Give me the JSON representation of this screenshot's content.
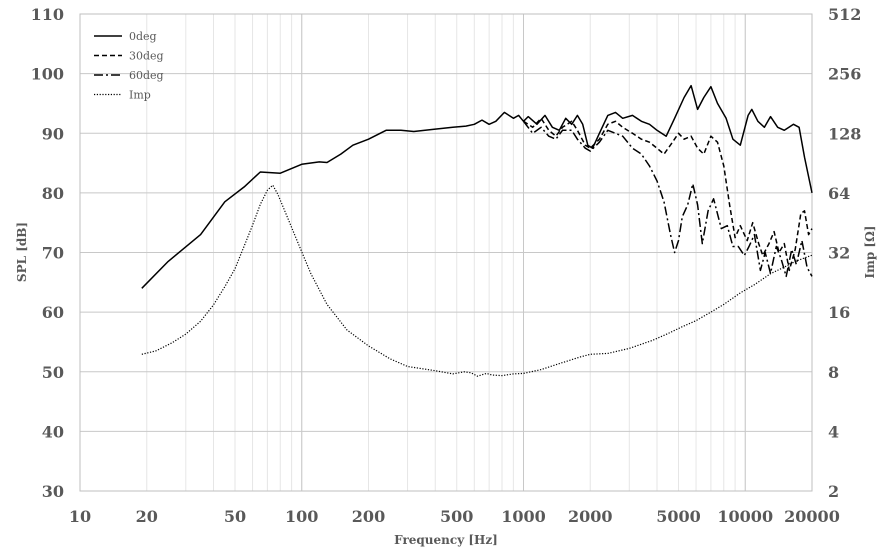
{
  "chart_data": {
    "type": "line",
    "title": "",
    "xlabel": "Frequency [Hz]",
    "ylabel": "SPL [dB]",
    "y2label": "Imp [Ω]",
    "x_scale": "log",
    "xlim": [
      10,
      20000
    ],
    "ylim": [
      30,
      110
    ],
    "y2lim": [
      2,
      512
    ],
    "y2_scale": "log2",
    "grid": true,
    "legend_position": "top-left",
    "xticks": [
      "10",
      "20",
      "50",
      "100",
      "200",
      "500",
      "1000",
      "2000",
      "5000",
      "10000",
      "20000"
    ],
    "yticks": [
      "30",
      "40",
      "50",
      "60",
      "70",
      "80",
      "90",
      "100",
      "110"
    ],
    "y2ticks": [
      "2",
      "4",
      "8",
      "16",
      "32",
      "64",
      "128",
      "256",
      "512"
    ],
    "series": [
      {
        "name": "0deg",
        "style": "solid",
        "axis": "left",
        "points": [
          [
            19,
            64
          ],
          [
            25,
            68.5
          ],
          [
            35,
            73
          ],
          [
            45,
            78.5
          ],
          [
            55,
            81
          ],
          [
            65,
            83.5
          ],
          [
            80,
            83.3
          ],
          [
            100,
            84.8
          ],
          [
            120,
            85.2
          ],
          [
            130,
            85.1
          ],
          [
            150,
            86.5
          ],
          [
            170,
            88
          ],
          [
            200,
            89
          ],
          [
            240,
            90.5
          ],
          [
            280,
            90.5
          ],
          [
            320,
            90.3
          ],
          [
            400,
            90.7
          ],
          [
            480,
            91
          ],
          [
            550,
            91.2
          ],
          [
            600,
            91.5
          ],
          [
            650,
            92.2
          ],
          [
            700,
            91.5
          ],
          [
            750,
            92
          ],
          [
            820,
            93.5
          ],
          [
            900,
            92.5
          ],
          [
            950,
            93
          ],
          [
            1000,
            92
          ],
          [
            1050,
            92.8
          ],
          [
            1150,
            91.5
          ],
          [
            1250,
            93
          ],
          [
            1350,
            91
          ],
          [
            1450,
            90.5
          ],
          [
            1550,
            92.5
          ],
          [
            1650,
            91.5
          ],
          [
            1750,
            93
          ],
          [
            1850,
            91.5
          ],
          [
            1950,
            88
          ],
          [
            2050,
            87.5
          ],
          [
            2200,
            90
          ],
          [
            2400,
            93
          ],
          [
            2600,
            93.5
          ],
          [
            2800,
            92.5
          ],
          [
            3100,
            93
          ],
          [
            3400,
            92
          ],
          [
            3700,
            91.5
          ],
          [
            4000,
            90.5
          ],
          [
            4400,
            89.5
          ],
          [
            4800,
            92.5
          ],
          [
            5300,
            96
          ],
          [
            5700,
            98
          ],
          [
            6100,
            94
          ],
          [
            6500,
            96
          ],
          [
            7000,
            97.8
          ],
          [
            7500,
            95
          ],
          [
            8200,
            92.5
          ],
          [
            8800,
            89
          ],
          [
            9500,
            88
          ],
          [
            10300,
            93
          ],
          [
            10700,
            94
          ],
          [
            11400,
            92
          ],
          [
            12200,
            91
          ],
          [
            13000,
            92.8
          ],
          [
            14000,
            91
          ],
          [
            15000,
            90.5
          ],
          [
            16500,
            91.5
          ],
          [
            17500,
            91
          ],
          [
            18500,
            86
          ],
          [
            20000,
            80
          ]
        ]
      },
      {
        "name": "30deg",
        "style": "dashed",
        "axis": "left",
        "points": [
          [
            1000,
            92
          ],
          [
            1100,
            91
          ],
          [
            1200,
            92.5
          ],
          [
            1300,
            90.5
          ],
          [
            1400,
            89.5
          ],
          [
            1500,
            91
          ],
          [
            1650,
            92
          ],
          [
            1750,
            90.5
          ],
          [
            1900,
            88
          ],
          [
            2000,
            87.5
          ],
          [
            2200,
            89
          ],
          [
            2400,
            91.5
          ],
          [
            2600,
            92
          ],
          [
            2800,
            91
          ],
          [
            3100,
            90
          ],
          [
            3400,
            89
          ],
          [
            3700,
            88.5
          ],
          [
            4000,
            87.5
          ],
          [
            4300,
            86.5
          ],
          [
            4700,
            88.5
          ],
          [
            5000,
            90
          ],
          [
            5300,
            89
          ],
          [
            5700,
            89.5
          ],
          [
            6100,
            87.5
          ],
          [
            6500,
            86.5
          ],
          [
            7000,
            89.5
          ],
          [
            7500,
            88.5
          ],
          [
            8000,
            84.5
          ],
          [
            8500,
            78
          ],
          [
            9000,
            72.5
          ],
          [
            9500,
            74.5
          ],
          [
            10200,
            72
          ],
          [
            10800,
            75
          ],
          [
            11500,
            71.5
          ],
          [
            12000,
            69.5
          ],
          [
            12800,
            71.5
          ],
          [
            13500,
            73.5
          ],
          [
            14200,
            70
          ],
          [
            15000,
            71.5
          ],
          [
            15800,
            67
          ],
          [
            16800,
            70.5
          ],
          [
            17800,
            76.5
          ],
          [
            18500,
            77
          ],
          [
            19300,
            73
          ],
          [
            20000,
            74
          ]
        ]
      },
      {
        "name": "60deg",
        "style": "dashdot",
        "axis": "left",
        "points": [
          [
            1000,
            92
          ],
          [
            1100,
            90
          ],
          [
            1200,
            91
          ],
          [
            1300,
            89.5
          ],
          [
            1400,
            89
          ],
          [
            1500,
            90.5
          ],
          [
            1650,
            90.5
          ],
          [
            1750,
            89
          ],
          [
            1900,
            87.5
          ],
          [
            2000,
            87
          ],
          [
            2200,
            88.5
          ],
          [
            2400,
            90.5
          ],
          [
            2600,
            90
          ],
          [
            2800,
            89.5
          ],
          [
            3100,
            87.5
          ],
          [
            3400,
            86.5
          ],
          [
            3700,
            84.5
          ],
          [
            4000,
            82
          ],
          [
            4300,
            78.5
          ],
          [
            4600,
            73
          ],
          [
            4800,
            70
          ],
          [
            5000,
            72
          ],
          [
            5200,
            76
          ],
          [
            5500,
            78
          ],
          [
            5800,
            81.5
          ],
          [
            6100,
            78
          ],
          [
            6400,
            71.5
          ],
          [
            6800,
            77
          ],
          [
            7200,
            79
          ],
          [
            7800,
            74
          ],
          [
            8300,
            74.5
          ],
          [
            8800,
            71
          ],
          [
            9300,
            71
          ],
          [
            9900,
            69.5
          ],
          [
            10400,
            71
          ],
          [
            11000,
            73
          ],
          [
            11700,
            67
          ],
          [
            12300,
            70
          ],
          [
            13000,
            66.5
          ],
          [
            13800,
            71
          ],
          [
            14500,
            69
          ],
          [
            15300,
            66
          ],
          [
            16200,
            70.5
          ],
          [
            17000,
            68
          ],
          [
            18000,
            72
          ],
          [
            19000,
            67.5
          ],
          [
            20000,
            66
          ]
        ]
      },
      {
        "name": "Imp",
        "style": "dotted",
        "axis": "right",
        "points": [
          [
            19,
            9.8
          ],
          [
            22,
            10.2
          ],
          [
            26,
            11.2
          ],
          [
            30,
            12.4
          ],
          [
            35,
            14.4
          ],
          [
            40,
            17.4
          ],
          [
            45,
            21.5
          ],
          [
            50,
            26.5
          ],
          [
            55,
            34.5
          ],
          [
            60,
            44
          ],
          [
            65,
            56
          ],
          [
            70,
            66
          ],
          [
            74,
            70
          ],
          [
            78,
            63
          ],
          [
            85,
            50
          ],
          [
            95,
            37
          ],
          [
            110,
            25
          ],
          [
            130,
            17.5
          ],
          [
            160,
            13
          ],
          [
            200,
            10.8
          ],
          [
            250,
            9.3
          ],
          [
            300,
            8.5
          ],
          [
            400,
            8.1
          ],
          [
            480,
            7.8
          ],
          [
            540,
            8
          ],
          [
            580,
            7.9
          ],
          [
            620,
            7.6
          ],
          [
            680,
            7.85
          ],
          [
            720,
            7.7
          ],
          [
            800,
            7.65
          ],
          [
            900,
            7.8
          ],
          [
            1000,
            7.85
          ],
          [
            1200,
            8.2
          ],
          [
            1500,
            8.9
          ],
          [
            1800,
            9.5
          ],
          [
            2000,
            9.8
          ],
          [
            2400,
            9.9
          ],
          [
            3000,
            10.5
          ],
          [
            3800,
            11.5
          ],
          [
            4500,
            12.5
          ],
          [
            5200,
            13.5
          ],
          [
            6000,
            14.5
          ],
          [
            7000,
            16
          ],
          [
            8000,
            17.5
          ],
          [
            9500,
            20
          ],
          [
            11000,
            22
          ],
          [
            13000,
            25
          ],
          [
            15000,
            27
          ],
          [
            17000,
            29
          ],
          [
            20000,
            31
          ]
        ]
      }
    ]
  }
}
